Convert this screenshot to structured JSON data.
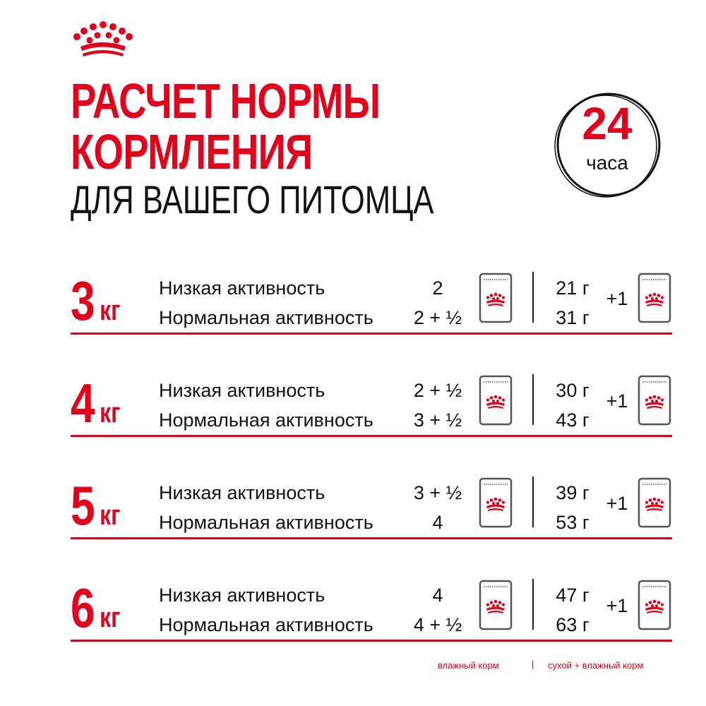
{
  "colors": {
    "accent": "#e2001a",
    "text": "#111111",
    "pouch": "#555555"
  },
  "logo": {
    "icon": "crown-icon"
  },
  "title": {
    "line1": "РАСЧЕТ НОРМЫ",
    "line2": "КОРМЛЕНИЯ",
    "subtitle": "ДЛЯ ВАШЕГО ПИТОМЦА"
  },
  "badge": {
    "number": "24",
    "label": "часа"
  },
  "rows": [
    {
      "weight": "3",
      "unit": "кг",
      "low_label": "Низкая активность",
      "normal_label": "Нормальная активность",
      "low_portion": "2",
      "normal_portion": "2 + ½",
      "low_grams": "21 г",
      "normal_grams": "31 г",
      "plus": "+1"
    },
    {
      "weight": "4",
      "unit": "кг",
      "low_label": "Низкая активность",
      "normal_label": "Нормальная активность",
      "low_portion": "2 + ½",
      "normal_portion": "3 + ½",
      "low_grams": "30 г",
      "normal_grams": "43 г",
      "plus": "+1"
    },
    {
      "weight": "5",
      "unit": "кг",
      "low_label": "Низкая активность",
      "normal_label": "Нормальная активность",
      "low_portion": "3 + ½",
      "normal_portion": "4",
      "low_grams": "39 г",
      "normal_grams": "53 г",
      "plus": "+1"
    },
    {
      "weight": "6",
      "unit": "кг",
      "low_label": "Низкая активность",
      "normal_label": "Нормальная активность",
      "low_portion": "4",
      "normal_portion": "4 + ½",
      "low_grams": "47 г",
      "normal_grams": "63 г",
      "plus": "+1"
    }
  ],
  "legend": {
    "wet": "влажный корм",
    "separator": "|",
    "dry_wet": "сухой + влажный корм"
  }
}
